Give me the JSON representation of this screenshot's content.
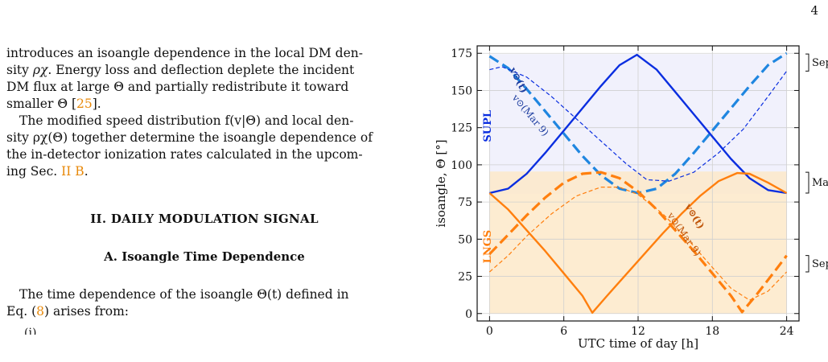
{
  "page": {
    "number": "4",
    "text": {
      "p1_a": "introduces an isoangle dependence in the local DM den-",
      "p1_b_pre": "sity ",
      "p1_b_sym": "ρχ",
      "p1_b_post": ". Energy loss and deflection deplete the incident",
      "p1_c": "DM flux at large Θ and partially redistribute it toward",
      "p1_d_pre": "smaller Θ [",
      "p1_d_ref": "25",
      "p1_d_post": "].",
      "p2_a": "The modified speed distribution f(v|Θ) and local den-",
      "p2_b": "sity ρχ(Θ) together determine the isoangle dependence of",
      "p2_c": "the in-detector ionization rates calculated in the upcom-",
      "p2_d_pre": "ing Sec. ",
      "p2_d_ref": "II B",
      "p2_d_post": ".",
      "section_heading": "II.   DAILY MODULATION SIGNAL",
      "subsection_heading": "A.   Isoangle Time Dependence",
      "p3_a": "The time dependence of the isoangle Θ(t) defined in",
      "p3_b_pre": "Eq. (",
      "p3_b_ref": "8",
      "p3_b_post": ") arises from:",
      "p4_cut": "(i)"
    }
  },
  "chart_data": {
    "type": "line",
    "xlabel": "UTC time of day [h]",
    "ylabel": "isoangle, Θ [°]",
    "xlim": [
      -1,
      25
    ],
    "ylim": [
      -5,
      180
    ],
    "xticks": [
      0,
      6,
      12,
      18,
      24
    ],
    "yticks": [
      0,
      25,
      50,
      75,
      100,
      125,
      150,
      175
    ],
    "grid": true,
    "colors": {
      "supl": "#0a2ee0",
      "supl_dashed": "#1f86e0",
      "lngs": "#ff7f0e",
      "supl_band": "#eeeefb",
      "lngs_band": "#fde9c9"
    },
    "bands": [
      {
        "name": "SUPL",
        "label": "SUPL",
        "y_range": [
          80.6,
          174.5
        ],
        "x_range": [
          0,
          24
        ]
      },
      {
        "name": "LNGS",
        "label": "LNGS",
        "y_range": [
          0,
          95.5
        ],
        "x_range": [
          0,
          24
        ]
      }
    ],
    "series": [
      {
        "id": "supl-solid",
        "color": "#0a2ee0",
        "style": "solid",
        "x": [
          0,
          1.5,
          3,
          4.5,
          6,
          7.5,
          9,
          10.5,
          11.9,
          13.5,
          15,
          16.5,
          18,
          19.5,
          21,
          22.5,
          24
        ],
        "y": [
          81,
          84,
          94,
          108,
          123,
          138,
          153,
          167,
          174,
          164,
          149,
          134,
          119,
          104,
          91,
          83,
          81
        ]
      },
      {
        "id": "supl-dashed",
        "color": "#1f86e0",
        "style": "dashed",
        "x": [
          0,
          1.5,
          3,
          4.5,
          6,
          7.5,
          9,
          10.5,
          12,
          13.5,
          15,
          16.5,
          18,
          19.5,
          21,
          22.5,
          24
        ],
        "y": [
          173,
          165,
          151,
          136,
          121,
          106,
          93,
          84,
          81,
          84,
          94,
          108,
          123,
          138,
          153,
          167,
          175
        ]
      },
      {
        "id": "supl-thin",
        "color": "#0a2ee0",
        "style": "thin-dashed",
        "x": [
          0,
          1,
          3,
          5,
          7,
          9,
          11,
          12.7,
          14.5,
          16.5,
          18.5,
          20.5,
          22.5,
          24
        ],
        "y": [
          164,
          166,
          159,
          146,
          131,
          116,
          101,
          90,
          89,
          95,
          108,
          124,
          146,
          163
        ]
      },
      {
        "id": "lngs-solid",
        "color": "#ff7f0e",
        "style": "solid",
        "x": [
          0,
          1.5,
          3,
          4.5,
          6,
          7.5,
          8.3,
          9.5,
          11,
          12.5,
          14,
          15.5,
          17,
          18.5,
          20,
          21,
          22.5,
          24
        ],
        "y": [
          81,
          70,
          56,
          42,
          27,
          12,
          0.5,
          12,
          26,
          40,
          54,
          67,
          79,
          89,
          94.5,
          94,
          88,
          81
        ]
      },
      {
        "id": "lngs-dashed",
        "color": "#ff7f0e",
        "style": "dashed",
        "x": [
          0,
          1.5,
          3,
          4.5,
          6,
          7.5,
          9,
          10.5,
          12,
          13.5,
          15,
          16.5,
          18,
          19.5,
          20.4,
          21.5,
          23,
          24
        ],
        "y": [
          40,
          53,
          66,
          78,
          88,
          94,
          95,
          91,
          82,
          70,
          56,
          42,
          27,
          12,
          1,
          12,
          28,
          39
        ]
      },
      {
        "id": "lngs-thin",
        "color": "#ff7f0e",
        "style": "thin-dashed",
        "x": [
          0,
          1.5,
          3,
          5,
          7,
          9,
          10.5,
          12,
          14,
          16,
          18,
          19.5,
          21,
          22.5,
          24
        ],
        "y": [
          28,
          39,
          52,
          67,
          79,
          85,
          85,
          80,
          67,
          50,
          31,
          17,
          9,
          15,
          28
        ]
      }
    ],
    "annotations": {
      "supl_v": "v⊙(t)",
      "supl_v_mar": "v⊙(Mar 9)",
      "lngs_v": "v⊙(t)",
      "lngs_v_mar": "v⊙(Mar 9)",
      "sep9_top": "Sep 9",
      "mar9": "Mar 9",
      "sep9_bottom": "Sep 9"
    }
  }
}
